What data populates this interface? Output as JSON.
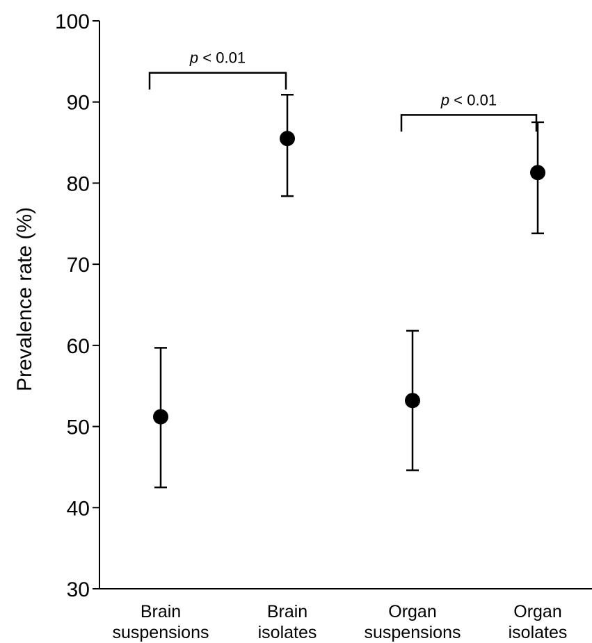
{
  "chart_data": {
    "type": "scatter",
    "title": "",
    "xlabel": "",
    "ylabel": "Prevalence rate (%)",
    "ylim": [
      30,
      100
    ],
    "yticks": [
      30,
      40,
      50,
      60,
      70,
      80,
      90,
      100
    ],
    "grid": false,
    "categories": [
      [
        "Brain",
        "suspensions"
      ],
      [
        "Brain",
        "isolates"
      ],
      [
        "Organ",
        "suspensions"
      ],
      [
        "Organ",
        "isolates"
      ]
    ],
    "points": [
      {
        "value": 51.2,
        "lower": 42.5,
        "upper": 59.7
      },
      {
        "value": 85.5,
        "lower": 78.4,
        "upper": 90.9
      },
      {
        "value": 53.2,
        "lower": 44.6,
        "upper": 61.8
      },
      {
        "value": 81.3,
        "lower": 73.8,
        "upper": 87.5
      }
    ],
    "comparisons": [
      {
        "from": 0,
        "to": 1,
        "at": 93.6,
        "label_p": "p",
        "label_rest": " < 0.01"
      },
      {
        "from": 2,
        "to": 3,
        "at": 88.4,
        "label_p": "p",
        "label_rest": " < 0.01"
      }
    ]
  }
}
